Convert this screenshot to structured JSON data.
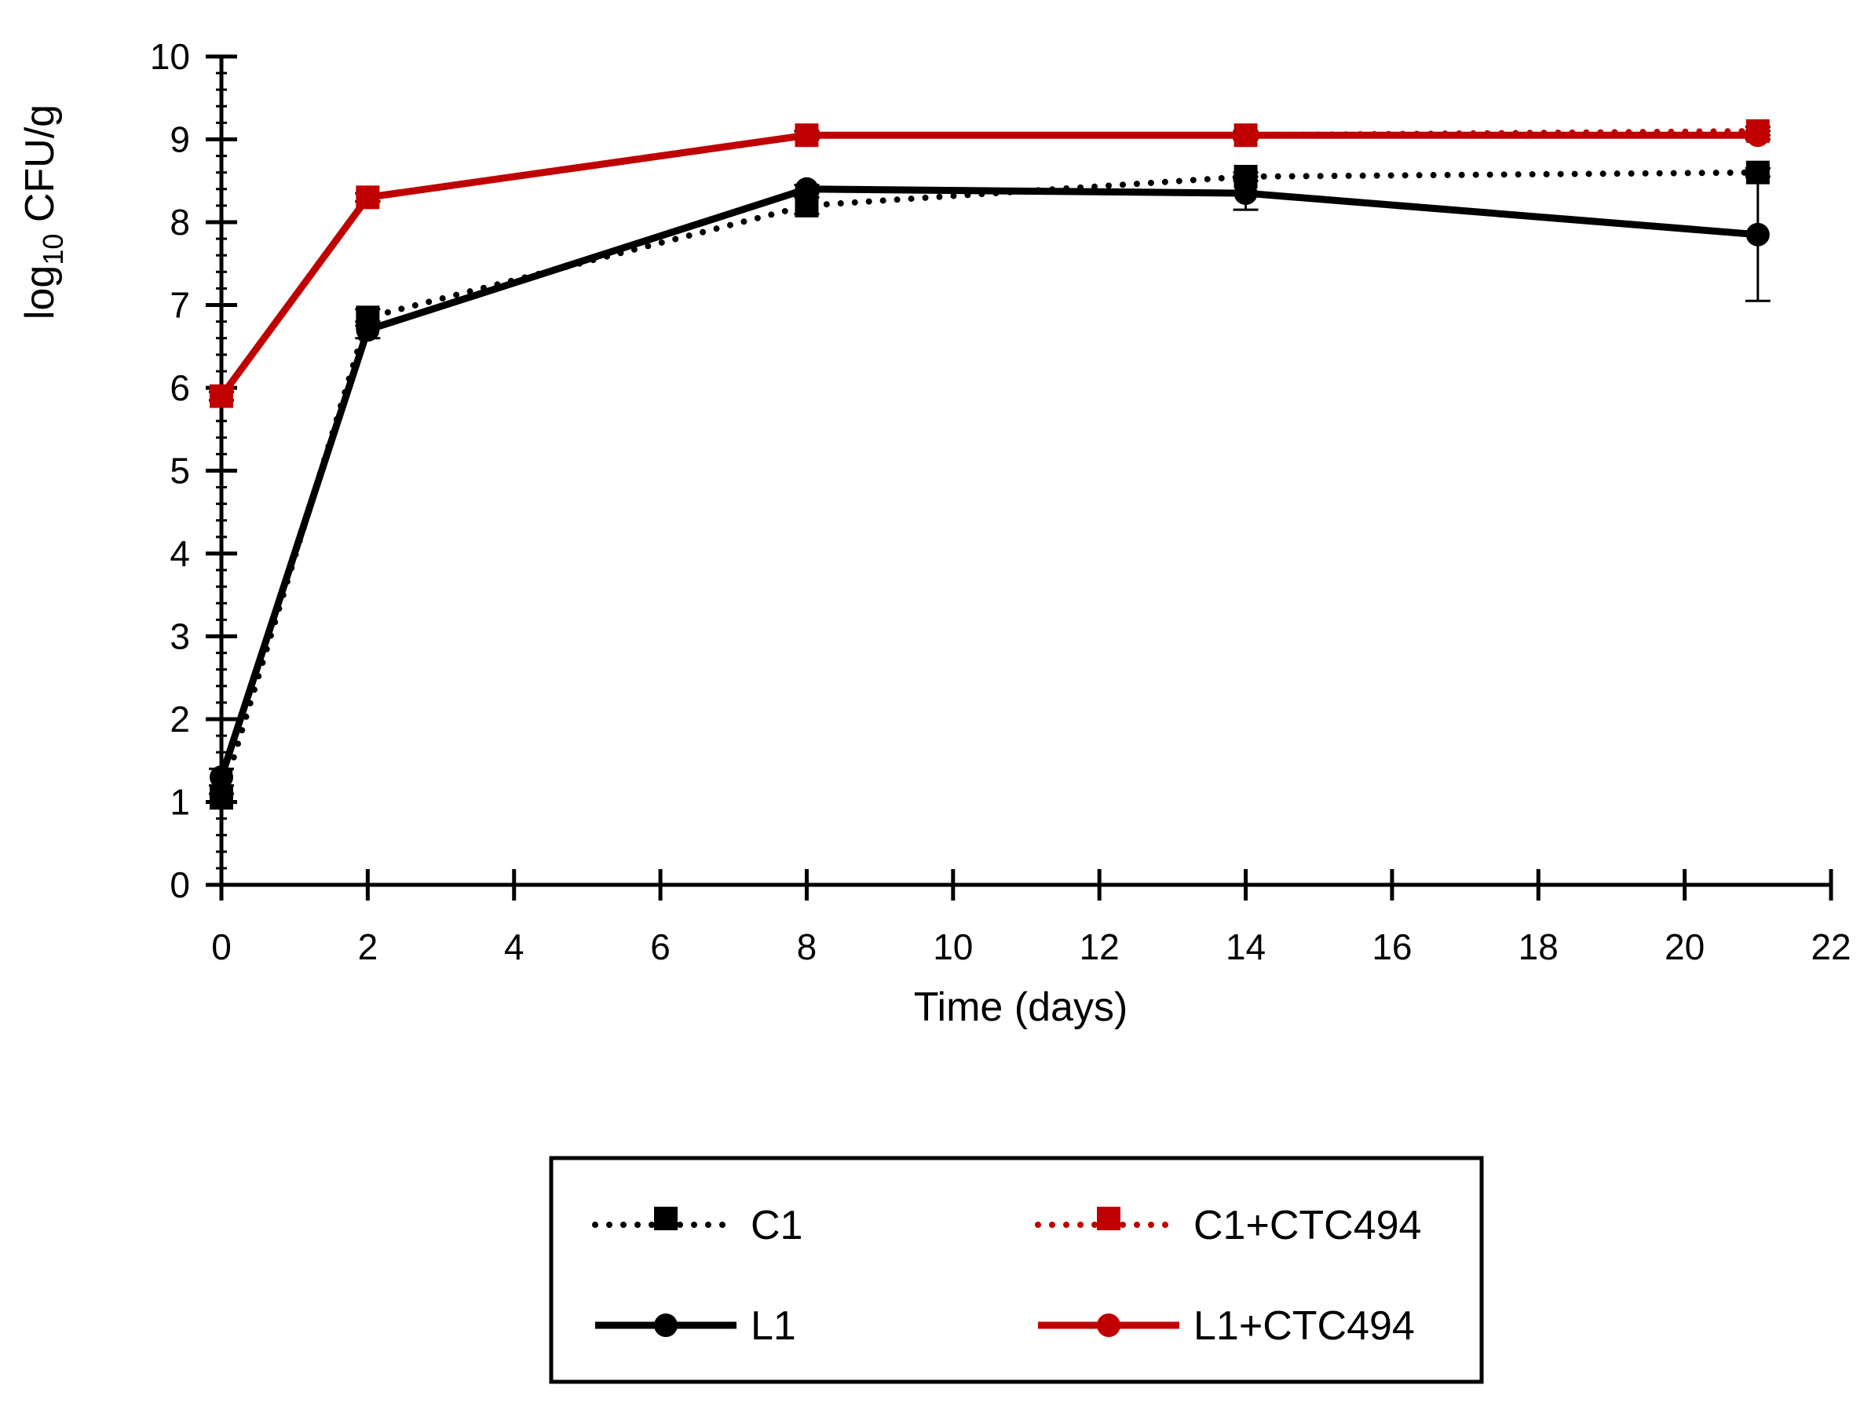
{
  "chart_data": {
    "type": "line",
    "title": "",
    "xlabel": "Time (days)",
    "ylabel_main": "log",
    "ylabel_sub": "10",
    "ylabel_rest": " CFU/g",
    "xlim": [
      0,
      22
    ],
    "ylim": [
      0,
      10
    ],
    "x_ticks": [
      0,
      2,
      4,
      6,
      8,
      10,
      12,
      14,
      16,
      18,
      20,
      22
    ],
    "y_ticks": [
      0,
      1,
      2,
      3,
      4,
      5,
      6,
      7,
      8,
      9,
      10
    ],
    "x": [
      0,
      2,
      8,
      14,
      21
    ],
    "legend_position": "bottom",
    "series": [
      {
        "name": "C1",
        "color": "#000000",
        "dash": "dotted",
        "marker": "square",
        "values": [
          1.05,
          6.85,
          8.2,
          8.55,
          8.6
        ],
        "errors": [
          0.05,
          0.1,
          0.1,
          0.05,
          0.05
        ]
      },
      {
        "name": "C1+CTC494",
        "color": "#c00000",
        "dash": "dotted",
        "marker": "square",
        "values": [
          5.9,
          8.3,
          9.05,
          9.05,
          9.1
        ],
        "errors": [
          0.05,
          0.05,
          0.05,
          0.05,
          0.05
        ]
      },
      {
        "name": "L1",
        "color": "#000000",
        "dash": "solid",
        "marker": "circle",
        "values": [
          1.3,
          6.7,
          8.4,
          8.35,
          7.85
        ],
        "errors": [
          0.1,
          0.1,
          0.05,
          0.2,
          0.8
        ]
      },
      {
        "name": "L1+CTC494",
        "color": "#c00000",
        "dash": "solid",
        "marker": "circle",
        "values": [
          5.9,
          8.3,
          9.05,
          9.05,
          9.05
        ],
        "errors": [
          0.05,
          0.05,
          0.05,
          0.05,
          0.05
        ]
      }
    ]
  }
}
